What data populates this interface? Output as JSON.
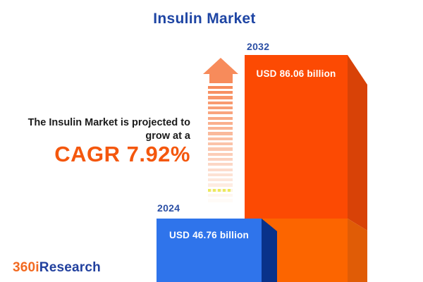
{
  "title": "Insulin Market",
  "headline": {
    "line1": "The Insulin Market is projected to",
    "line2": "grow at a",
    "cagr": "CAGR 7.92%"
  },
  "chart_data": {
    "type": "bar",
    "title": "Insulin Market",
    "categories": [
      "2024",
      "2032"
    ],
    "values": [
      46.76,
      86.06
    ],
    "unit": "USD billion",
    "value_labels": [
      "USD 46.76 billion",
      "USD 86.06 billion"
    ],
    "cagr_percent": 7.92,
    "bar_colors": [
      "#2F74EB",
      "#FC4A03"
    ],
    "legend": "none",
    "style": "pictorial 3d extruded bars, values labeled on bars, growth arrow between text and bars"
  },
  "logo": {
    "prefix": "360i",
    "suffix": "Research"
  },
  "colors": {
    "background": "#FFFFFF",
    "title_blue": "#1E45A4",
    "year_label_blue": "#2B4FA5",
    "headline_text": "#1B1B1B",
    "cagr_orange": "#F4570D",
    "arrow_orange": "#F78B5B",
    "arrow_fade_to": "#FFFBF7",
    "bar_2024_front": "#2F74EB",
    "bar_2024_side": "#09328A",
    "bar_2032_front_top": "#FC4A03",
    "bar_2032_front_bottom": "#FC6500",
    "bar_2032_side_top": "#D84207",
    "bar_2032_side_bottom": "#E05C06",
    "logo_orange": "#F26A21",
    "logo_blue": "#21409E"
  }
}
